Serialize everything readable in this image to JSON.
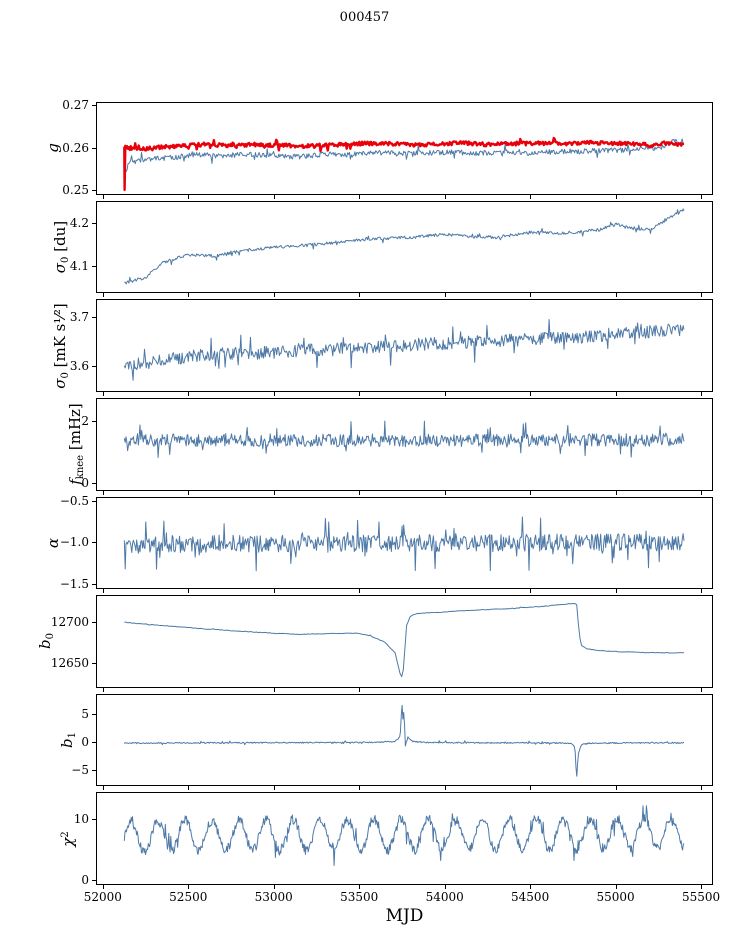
{
  "title": "000457",
  "xlabel": "MJD",
  "colors": {
    "blue": "#4e79a7",
    "red": "#e8000b"
  },
  "chart_data": {
    "type": "line",
    "layout": {
      "xlim": [
        51966,
        55564
      ],
      "xticks": [
        52000,
        52500,
        53000,
        53500,
        54000,
        54500,
        55000,
        55500
      ],
      "xtick_labels": [
        "52000",
        "52500",
        "53000",
        "53500",
        "54000",
        "54500",
        "55000",
        "55500"
      ],
      "grid": false,
      "shared_x": true
    },
    "panels": [
      {
        "id": "g",
        "ylabel": {
          "var": "g",
          "sub": "",
          "sup": "",
          "unit": ""
        },
        "ylim": [
          0.2493,
          0.2707
        ],
        "ytick_vals": [
          0.25,
          0.26,
          0.27
        ],
        "yticks": [
          "0.25",
          "0.26",
          "0.27"
        ],
        "series": [
          {
            "name": "g-secondary",
            "color": "blue",
            "width": 1,
            "n": 620,
            "noise": 0.0006,
            "keypoints": [
              [
                52126,
                0.254
              ],
              [
                52150,
                0.2565
              ],
              [
                52250,
                0.2575
              ],
              [
                52400,
                0.2578
              ],
              [
                52550,
                0.2585
              ],
              [
                52700,
                0.2582
              ],
              [
                52850,
                0.2586
              ],
              [
                53000,
                0.2583
              ],
              [
                53150,
                0.258
              ],
              [
                53300,
                0.2586
              ],
              [
                53450,
                0.2585
              ],
              [
                53600,
                0.259
              ],
              [
                53750,
                0.2587
              ],
              [
                53900,
                0.2589
              ],
              [
                54050,
                0.2591
              ],
              [
                54200,
                0.2588
              ],
              [
                54350,
                0.2592
              ],
              [
                54500,
                0.2589
              ],
              [
                54650,
                0.2592
              ],
              [
                54800,
                0.2593
              ],
              [
                54950,
                0.2595
              ],
              [
                55100,
                0.2596
              ],
              [
                55250,
                0.26
              ],
              [
                55340,
                0.2618
              ],
              [
                55400,
                0.261
              ]
            ],
            "spikes": [
              [
                52128,
                0.2505
              ]
            ]
          },
          {
            "name": "g-main",
            "color": "red",
            "width": 2.4,
            "n": 620,
            "noise": 0.00045,
            "keypoints": [
              [
                52126,
                0.2602
              ],
              [
                52200,
                0.2598
              ],
              [
                52300,
                0.2601
              ],
              [
                52450,
                0.2606
              ],
              [
                52600,
                0.2609
              ],
              [
                52750,
                0.2607
              ],
              [
                52900,
                0.2609
              ],
              [
                53050,
                0.2607
              ],
              [
                53200,
                0.2605
              ],
              [
                53350,
                0.2608
              ],
              [
                53500,
                0.2611
              ],
              [
                53650,
                0.2612
              ],
              [
                53800,
                0.2608
              ],
              [
                53950,
                0.261
              ],
              [
                54100,
                0.2613
              ],
              [
                54250,
                0.2609
              ],
              [
                54400,
                0.2611
              ],
              [
                54550,
                0.2612
              ],
              [
                54700,
                0.261
              ],
              [
                54850,
                0.2613
              ],
              [
                55000,
                0.2612
              ],
              [
                55150,
                0.261
              ],
              [
                55220,
                0.2606
              ],
              [
                55300,
                0.2613
              ],
              [
                55400,
                0.2608
              ]
            ],
            "spikes": [
              [
                52127.5,
                0.2502
              ]
            ]
          }
        ]
      },
      {
        "id": "sigma0-du",
        "ylabel": {
          "var": "σ",
          "sub": "0",
          "sup": "",
          "unit": " [du]"
        },
        "ylim": [
          4.04,
          4.25
        ],
        "ytick_vals": [
          4.1,
          4.2
        ],
        "yticks": [
          "4.1",
          "4.2"
        ],
        "series": [
          {
            "name": "sigma0-du",
            "color": "blue",
            "width": 1,
            "n": 620,
            "noise": 0.0035,
            "keypoints": [
              [
                52126,
                4.062
              ],
              [
                52250,
                4.075
              ],
              [
                52350,
                4.11
              ],
              [
                52500,
                4.128
              ],
              [
                52650,
                4.125
              ],
              [
                52800,
                4.135
              ],
              [
                53000,
                4.145
              ],
              [
                53200,
                4.15
              ],
              [
                53400,
                4.158
              ],
              [
                53600,
                4.165
              ],
              [
                53800,
                4.168
              ],
              [
                54000,
                4.175
              ],
              [
                54150,
                4.17
              ],
              [
                54300,
                4.168
              ],
              [
                54500,
                4.18
              ],
              [
                54700,
                4.178
              ],
              [
                54900,
                4.185
              ],
              [
                55000,
                4.198
              ],
              [
                55100,
                4.19
              ],
              [
                55200,
                4.185
              ],
              [
                55300,
                4.21
              ],
              [
                55400,
                4.232
              ]
            ],
            "spikes": []
          }
        ]
      },
      {
        "id": "sigma0-mk",
        "ylabel": {
          "var": "σ",
          "sub": "0",
          "sup": "",
          "unit": " [mK s¹⁄²]"
        },
        "ylim": [
          3.55,
          3.735
        ],
        "ytick_vals": [
          3.6,
          3.7
        ],
        "yticks": [
          "3.6",
          "3.7"
        ],
        "series": [
          {
            "name": "sigma0-mk",
            "color": "blue",
            "width": 1,
            "n": 640,
            "noise": 0.013,
            "keypoints": [
              [
                52126,
                3.6
              ],
              [
                52300,
                3.608
              ],
              [
                52500,
                3.62
              ],
              [
                52700,
                3.625
              ],
              [
                53000,
                3.628
              ],
              [
                53300,
                3.635
              ],
              [
                53600,
                3.64
              ],
              [
                53900,
                3.645
              ],
              [
                54200,
                3.65
              ],
              [
                54500,
                3.655
              ],
              [
                54800,
                3.66
              ],
              [
                55100,
                3.668
              ],
              [
                55400,
                3.675
              ]
            ],
            "spikes": []
          }
        ]
      },
      {
        "id": "fknee",
        "ylabel": {
          "var": "f",
          "sub": "knee",
          "sup": "",
          "unit": " [mHz]"
        },
        "ylim": [
          -0.2,
          2.75
        ],
        "ytick_vals": [
          0,
          2
        ],
        "yticks": [
          "0",
          "2"
        ],
        "series": [
          {
            "name": "fknee",
            "color": "blue",
            "width": 1,
            "n": 680,
            "noise": 0.21,
            "keypoints": [
              [
                52126,
                1.42
              ],
              [
                53500,
                1.4
              ],
              [
                55400,
                1.41
              ]
            ],
            "spikes": []
          }
        ]
      },
      {
        "id": "alpha",
        "ylabel": {
          "var": "α",
          "sub": "",
          "sup": "",
          "unit": ""
        },
        "ylim": [
          -1.55,
          -0.45
        ],
        "ytick_vals": [
          -1.5,
          -1.0,
          -0.5
        ],
        "yticks": [
          "−1.5",
          "−1.0",
          "−0.5"
        ],
        "series": [
          {
            "name": "alpha",
            "color": "blue",
            "width": 1,
            "n": 680,
            "noise": 0.105,
            "keypoints": [
              [
                52126,
                -1.01
              ],
              [
                54000,
                -1.0
              ],
              [
                55400,
                -0.985
              ]
            ],
            "spikes": []
          }
        ]
      },
      {
        "id": "b0",
        "ylabel": {
          "var": "b",
          "sub": "0",
          "sup": "",
          "unit": ""
        },
        "ylim": [
          12622,
          12732
        ],
        "ytick_vals": [
          12650,
          12700
        ],
        "yticks": [
          "12650",
          "12700"
        ],
        "series": [
          {
            "name": "b0",
            "color": "blue",
            "width": 1,
            "n": 340,
            "noise": 0.35,
            "keypoints": [
              [
                52126,
                12700
              ],
              [
                52300,
                12697
              ],
              [
                52600,
                12692
              ],
              [
                52900,
                12688
              ],
              [
                53150,
                12685.5
              ],
              [
                53350,
                12686.5
              ],
              [
                53480,
                12687
              ],
              [
                53560,
                12684
              ],
              [
                53650,
                12676
              ],
              [
                53710,
                12663
              ],
              [
                53745,
                12633
              ],
              [
                53755,
                12636
              ],
              [
                53762,
                12650
              ],
              [
                53775,
                12695
              ],
              [
                53800,
                12708
              ],
              [
                53850,
                12711
              ],
              [
                53950,
                12712
              ],
              [
                54100,
                12714
              ],
              [
                54250,
                12715.5
              ],
              [
                54400,
                12717
              ],
              [
                54550,
                12719
              ],
              [
                54650,
                12721
              ],
              [
                54755,
                12723
              ],
              [
                54772,
                12722
              ],
              [
                54788,
                12685
              ],
              [
                54800,
                12672
              ],
              [
                54830,
                12668
              ],
              [
                54900,
                12666
              ],
              [
                55000,
                12664.5
              ],
              [
                55150,
                12663.5
              ],
              [
                55300,
                12663
              ],
              [
                55400,
                12663
              ]
            ],
            "spikes": []
          }
        ]
      },
      {
        "id": "b1",
        "ylabel": {
          "var": "b",
          "sub": "1",
          "sup": "",
          "unit": ""
        },
        "ylim": [
          -7.6,
          8.6
        ],
        "ytick_vals": [
          -5,
          0,
          5
        ],
        "yticks": [
          "−5",
          "0",
          "5"
        ],
        "series": [
          {
            "name": "b1",
            "color": "blue",
            "width": 1,
            "n": 680,
            "noise": 0.11,
            "keypoints": [
              [
                52126,
                0
              ],
              [
                52800,
                0.05
              ],
              [
                53300,
                0.1
              ],
              [
                53600,
                0.15
              ],
              [
                53710,
                0.3
              ],
              [
                53740,
                1.2
              ],
              [
                53750,
                7.3
              ],
              [
                53756,
                4.2
              ],
              [
                53762,
                5.8
              ],
              [
                53770,
                -0.6
              ],
              [
                53785,
                1.1
              ],
              [
                53810,
                0.3
              ],
              [
                53900,
                0.1
              ],
              [
                54300,
                0.05
              ],
              [
                54740,
                0
              ],
              [
                54762,
                -0.8
              ],
              [
                54772,
                -6.4
              ],
              [
                54782,
                -2.0
              ],
              [
                54800,
                -0.3
              ],
              [
                54850,
                0
              ],
              [
                55400,
                0.05
              ]
            ],
            "spikes": []
          }
        ]
      },
      {
        "id": "chi2",
        "ylabel": {
          "var": "χ",
          "sub": "",
          "sup": "2",
          "unit": ""
        },
        "ylim": [
          -0.6,
          14.2
        ],
        "ytick_vals": [
          0,
          10
        ],
        "yticks": [
          "0",
          "10"
        ],
        "series": [
          {
            "name": "chi2",
            "color": "blue",
            "width": 1,
            "n": 820,
            "noise": 0.8,
            "osc": {
              "amp": 2.5,
              "period": 158
            },
            "keypoints": [
              [
                52126,
                6.9
              ],
              [
                52500,
                7.3
              ],
              [
                53500,
                7.4
              ],
              [
                54500,
                7.5
              ],
              [
                55400,
                7.7
              ]
            ],
            "spikes": []
          }
        ]
      }
    ]
  }
}
